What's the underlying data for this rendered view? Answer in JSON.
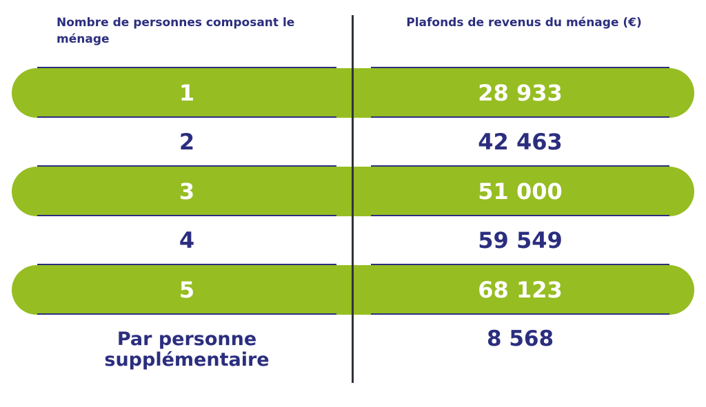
{
  "headers": {
    "household_size": "Nombre de personnes composant le ménage",
    "income_ceiling": "Plafonds de revenus du ménage (€)"
  },
  "rows": [
    {
      "persons": "1",
      "ceiling": "28 933"
    },
    {
      "persons": "2",
      "ceiling": "42 463"
    },
    {
      "persons": "3",
      "ceiling": "51 000"
    },
    {
      "persons": "4",
      "ceiling": "59 549"
    },
    {
      "persons": "5",
      "ceiling": "68 123"
    }
  ],
  "extra_person": {
    "label": "Par personne supplémentaire",
    "value": "8 568"
  },
  "colors": {
    "green": "#96bd22",
    "navy": "#2b2e7e",
    "divider": "#2e3238"
  }
}
